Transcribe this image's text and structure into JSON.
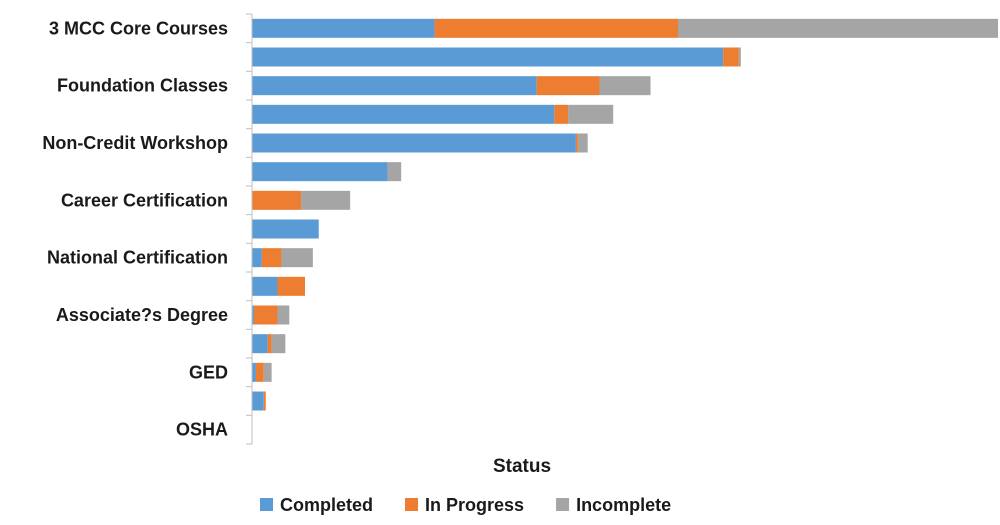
{
  "chart_data": {
    "type": "bar",
    "orientation": "horizontal",
    "stacked": true,
    "xlabel": "Status",
    "xlim": [
      0,
      380
    ],
    "grid": false,
    "legend_position": "bottom",
    "categories": [
      "3 MCC Core Courses",
      "",
      "Foundation Classes",
      "",
      "Non-Credit Workshop",
      "",
      "Career Certification",
      "",
      "National Certification",
      "",
      "Associate?s Degree",
      "",
      "GED",
      "",
      "OSHA"
    ],
    "series": [
      {
        "name": "Completed",
        "color": "#5b9bd5",
        "values": [
          93,
          240,
          145,
          154,
          165,
          69,
          0,
          34,
          5,
          13,
          1,
          8,
          2,
          6,
          0
        ]
      },
      {
        "name": "In Progress",
        "color": "#ed7d31",
        "values": [
          124,
          8,
          32,
          7,
          1,
          0,
          25,
          0,
          10,
          14,
          12,
          2,
          4,
          1,
          0
        ]
      },
      {
        "name": "Incomplete",
        "color": "#a5a5a5",
        "values": [
          163,
          1,
          26,
          23,
          5,
          7,
          25,
          0,
          16,
          0,
          6,
          7,
          4,
          0,
          0
        ]
      }
    ]
  }
}
